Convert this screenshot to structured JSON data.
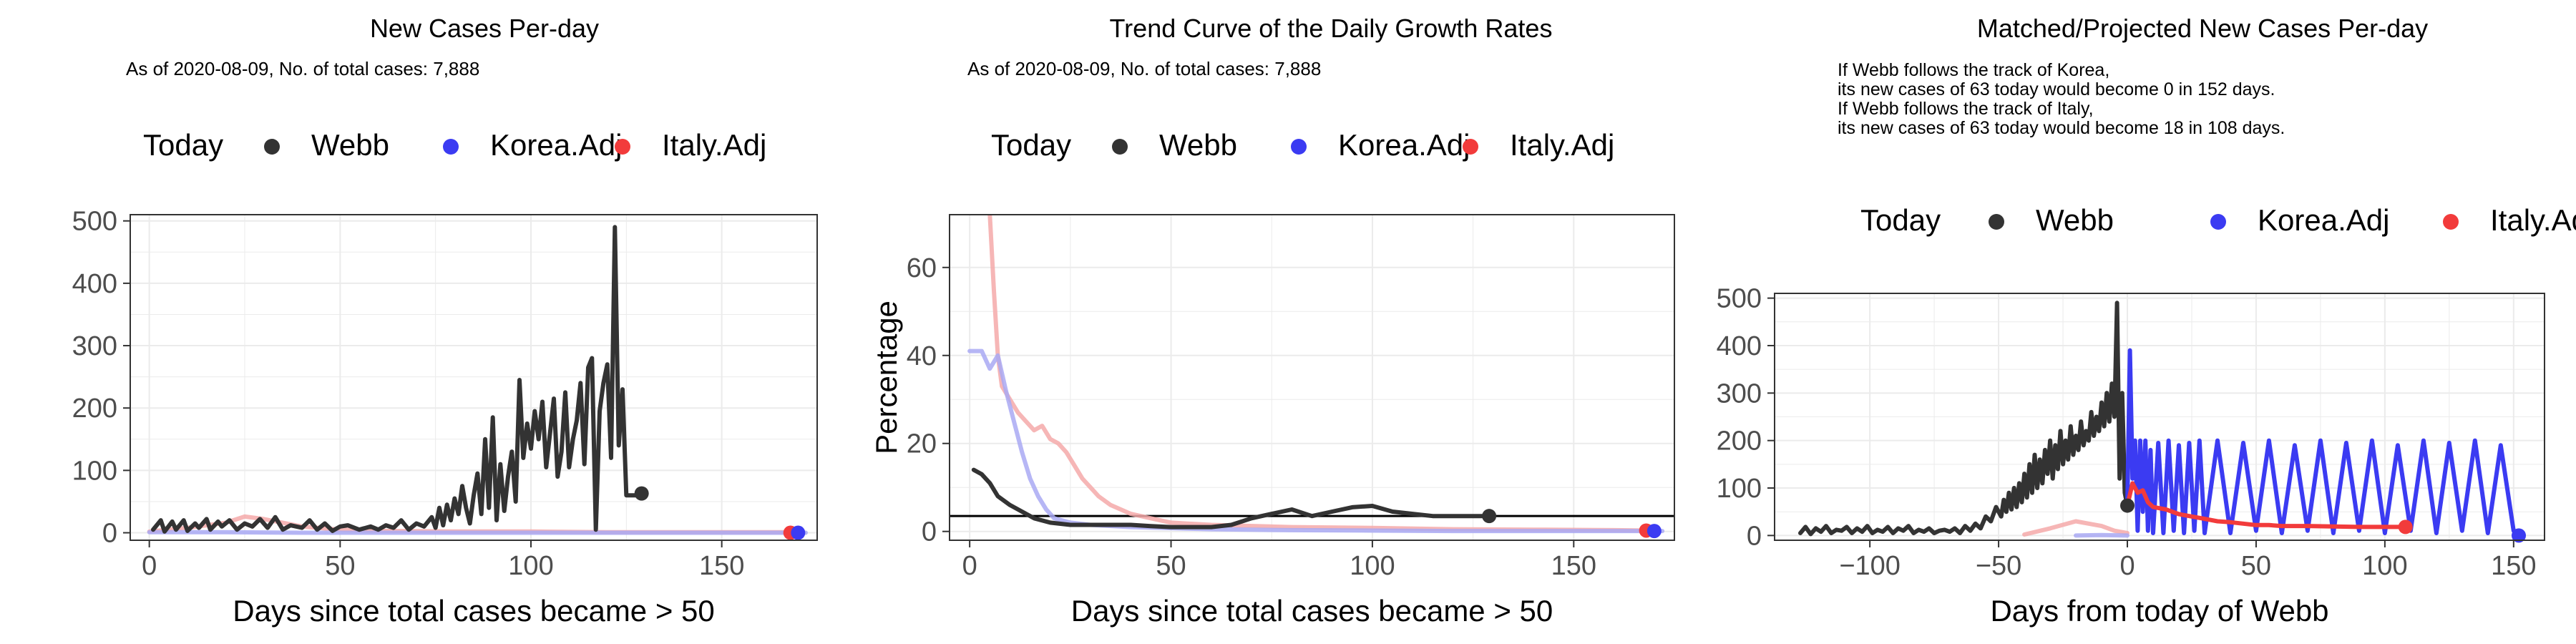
{
  "colors": {
    "webb": "#333333",
    "korea": "#3b3bf2",
    "italy": "#f23b3b",
    "korea_light": "#a9a9f3",
    "italy_light": "#f5a9a9",
    "grid": "#ebebeb"
  },
  "legend": {
    "today": "Today",
    "webb": "Webb",
    "korea": "Korea.Adj",
    "italy": "Italy.Adj"
  },
  "chart_data": [
    {
      "type": "line",
      "title": "New Cases Per-day",
      "subtitle": "As of 2020-08-09, No. of total cases: 7,888",
      "xlabel": "Days since total cases became > 50",
      "ylabel": "",
      "xlim": [
        -5,
        175
      ],
      "ylim": [
        -12,
        510
      ],
      "xticks": [
        0,
        50,
        100,
        150
      ],
      "yticks": [
        0,
        100,
        200,
        300,
        400,
        500
      ],
      "grid": true,
      "legend_position": "top",
      "series": [
        {
          "name": "Italy.Adj",
          "style": "faint",
          "x": [
            0,
            10,
            20,
            25,
            30,
            35,
            40,
            50,
            60,
            80,
            100,
            120,
            140,
            160,
            170
          ],
          "y": [
            2,
            8,
            16,
            26,
            22,
            16,
            10,
            5,
            3,
            2,
            2,
            1,
            1,
            1,
            1
          ]
        },
        {
          "name": "Korea.Adj",
          "style": "faint",
          "x": [
            0,
            5,
            10,
            20,
            40,
            60,
            80,
            100,
            120,
            140,
            160,
            172
          ],
          "y": [
            1,
            1,
            1,
            1,
            0,
            0,
            0,
            0,
            0,
            0,
            0,
            0
          ]
        },
        {
          "name": "Webb",
          "style": "main",
          "x": [
            1,
            3,
            4,
            6,
            7,
            9,
            10,
            12,
            13,
            15,
            16,
            18,
            19,
            21,
            23,
            25,
            27,
            29,
            31,
            33,
            35,
            37,
            40,
            42,
            44,
            46,
            48,
            50,
            52,
            55,
            58,
            60,
            62,
            64,
            66,
            68,
            70,
            72,
            74,
            75,
            76,
            77,
            78,
            79,
            80,
            81,
            82,
            83,
            84,
            85,
            86,
            87,
            88,
            89,
            90,
            91,
            92,
            93,
            94,
            95,
            96,
            97,
            98,
            99,
            100,
            101,
            102,
            103,
            104,
            105,
            106,
            107,
            108,
            109,
            110,
            111,
            112,
            113,
            114,
            115,
            116,
            117,
            118,
            119,
            120,
            121,
            122,
            123,
            124,
            125,
            126,
            127,
            128,
            129
          ],
          "y": [
            5,
            20,
            2,
            18,
            5,
            20,
            3,
            15,
            8,
            22,
            5,
            18,
            10,
            20,
            5,
            15,
            10,
            22,
            8,
            25,
            5,
            12,
            8,
            20,
            5,
            15,
            3,
            10,
            12,
            5,
            10,
            5,
            12,
            8,
            20,
            5,
            15,
            10,
            25,
            8,
            40,
            12,
            45,
            20,
            55,
            30,
            75,
            40,
            15,
            60,
            95,
            30,
            150,
            40,
            185,
            20,
            110,
            35,
            90,
            130,
            50,
            245,
            120,
            175,
            135,
            195,
            150,
            210,
            105,
            160,
            215,
            90,
            130,
            225,
            105,
            150,
            180,
            240,
            110,
            265,
            280,
            5,
            195,
            240,
            270,
            120,
            490,
            140,
            230,
            60,
            60,
            60,
            60,
            63
          ]
        }
      ],
      "today_points": [
        {
          "series": "Webb",
          "x": 129,
          "y": 63
        },
        {
          "series": "Italy.Adj",
          "x": 168,
          "y": 0
        },
        {
          "series": "Korea.Adj",
          "x": 170,
          "y": 0
        }
      ]
    },
    {
      "type": "line",
      "title": "Trend Curve of the Daily Growth Rates",
      "subtitle": "As of 2020-08-09, No. of total cases: 7,888",
      "xlabel": "Days since total cases became > 50",
      "ylabel": "Percentage",
      "xlim": [
        -5,
        175
      ],
      "ylim": [
        -2,
        72
      ],
      "xticks": [
        0,
        50,
        100,
        150
      ],
      "yticks": [
        0,
        20,
        40,
        60
      ],
      "hline": 3.5,
      "grid": true,
      "legend_position": "top",
      "series": [
        {
          "name": "Italy.Adj",
          "style": "faint",
          "x": [
            5,
            6,
            7,
            8,
            10,
            12,
            14,
            16,
            18,
            20,
            22,
            24,
            26,
            28,
            30,
            32,
            35,
            40,
            45,
            50,
            60,
            80,
            100,
            120,
            140,
            160,
            170
          ],
          "y": [
            72,
            55,
            40,
            33,
            30,
            27,
            25,
            23,
            24,
            21,
            20,
            18,
            15,
            12,
            10,
            8,
            6,
            4,
            3,
            2,
            1.5,
            1,
            0.8,
            0.5,
            0.4,
            0.3,
            0.2
          ]
        },
        {
          "name": "Korea.Adj",
          "style": "faint",
          "x": [
            0,
            3,
            5,
            7,
            9,
            11,
            13,
            15,
            17,
            19,
            21,
            25,
            30,
            40,
            60,
            80,
            100,
            120,
            140,
            160,
            172
          ],
          "y": [
            41,
            41,
            37,
            40,
            32,
            25,
            18,
            12,
            8,
            5,
            3,
            2,
            1.5,
            1,
            0.5,
            0.3,
            0.2,
            0.1,
            0.1,
            0.1,
            0.1
          ]
        },
        {
          "name": "Webb",
          "style": "main",
          "x": [
            1,
            3,
            5,
            7,
            10,
            13,
            16,
            20,
            25,
            30,
            35,
            40,
            45,
            50,
            55,
            60,
            65,
            70,
            75,
            80,
            85,
            90,
            95,
            100,
            105,
            110,
            115,
            120,
            125,
            129
          ],
          "y": [
            14,
            13,
            11,
            8,
            6,
            4.5,
            3,
            2,
            1.5,
            1.5,
            1.5,
            1.5,
            1.2,
            1.0,
            1.0,
            1.0,
            1.5,
            3,
            4,
            5,
            3.5,
            4.5,
            5.5,
            5.8,
            4.5,
            4,
            3.5,
            3.5,
            3.5,
            3.5
          ]
        }
      ],
      "today_points": [
        {
          "series": "Webb",
          "x": 129,
          "y": 3.5
        },
        {
          "series": "Italy.Adj",
          "x": 168,
          "y": 0.2
        },
        {
          "series": "Korea.Adj",
          "x": 170,
          "y": 0.1
        }
      ]
    },
    {
      "type": "line",
      "title": "Matched/Projected New Cases Per-day",
      "annotations": [
        "If Webb follows the track of Korea,",
        "its new cases of 63 today would become 0 in 152 days.",
        "If Webb follows the track of Italy,",
        "its new cases of 63 today would become 18 in 108 days."
      ],
      "xlabel": "Days from today of Webb",
      "ylabel": "",
      "xlim": [
        -137,
        162
      ],
      "ylim": [
        -10,
        510
      ],
      "xticks": [
        -100,
        -50,
        0,
        50,
        100,
        150
      ],
      "yticks": [
        0,
        100,
        200,
        300,
        400,
        500
      ],
      "grid": true,
      "legend_position": "top",
      "series": [
        {
          "name": "Italy.Adj",
          "style": "faint",
          "x": [
            -40,
            -30,
            -20,
            -15,
            -10,
            -5,
            0
          ],
          "y": [
            2,
            15,
            30,
            25,
            20,
            10,
            5
          ]
        },
        {
          "name": "Korea.Adj",
          "style": "faint",
          "x": [
            -20,
            -10,
            0
          ],
          "y": [
            0,
            1,
            0
          ]
        },
        {
          "name": "Webb",
          "style": "main",
          "x": [
            -127,
            -125,
            -123,
            -121,
            -119,
            -117,
            -115,
            -113,
            -111,
            -109,
            -107,
            -105,
            -103,
            -101,
            -99,
            -97,
            -95,
            -93,
            -91,
            -89,
            -87,
            -85,
            -83,
            -81,
            -79,
            -77,
            -75,
            -73,
            -71,
            -69,
            -67,
            -65,
            -63,
            -61,
            -59,
            -57,
            -55,
            -53,
            -51,
            -49,
            -48,
            -47,
            -46,
            -45,
            -44,
            -43,
            -42,
            -41,
            -40,
            -39,
            -38,
            -37,
            -36,
            -35,
            -34,
            -33,
            -32,
            -31,
            -30,
            -29,
            -28,
            -27,
            -26,
            -25,
            -24,
            -23,
            -22,
            -21,
            -20,
            -19,
            -18,
            -17,
            -16,
            -15,
            -14,
            -13,
            -12,
            -11,
            -10,
            -9,
            -8,
            -7,
            -6,
            -5,
            -4,
            -3,
            -2,
            -1,
            0
          ],
          "y": [
            5,
            18,
            3,
            15,
            8,
            20,
            5,
            12,
            10,
            18,
            5,
            15,
            8,
            20,
            5,
            12,
            8,
            18,
            5,
            15,
            10,
            20,
            5,
            12,
            8,
            15,
            5,
            10,
            12,
            8,
            15,
            5,
            20,
            10,
            25,
            15,
            40,
            30,
            60,
            40,
            75,
            50,
            90,
            55,
            100,
            60,
            110,
            70,
            130,
            80,
            150,
            90,
            170,
            100,
            160,
            110,
            180,
            130,
            200,
            120,
            190,
            140,
            220,
            150,
            200,
            160,
            230,
            170,
            210,
            180,
            240,
            190,
            220,
            200,
            260,
            210,
            250,
            220,
            280,
            230,
            300,
            240,
            320,
            250,
            490,
            120,
            300,
            90,
            63
          ]
        },
        {
          "name": "Korea.Adj",
          "style": "projection",
          "x": [
            0,
            1,
            2,
            3,
            4,
            5,
            6,
            7,
            8,
            9,
            10,
            12,
            14,
            16,
            18,
            20,
            22,
            24,
            26,
            28,
            30,
            35,
            40,
            45,
            50,
            55,
            60,
            65,
            70,
            75,
            80,
            85,
            90,
            95,
            100,
            105,
            110,
            115,
            120,
            125,
            130,
            135,
            140,
            145,
            150,
            152
          ],
          "y": [
            63,
            390,
            120,
            200,
            10,
            200,
            50,
            200,
            10,
            180,
            5,
            195,
            5,
            200,
            10,
            190,
            5,
            195,
            10,
            200,
            5,
            200,
            5,
            195,
            10,
            200,
            5,
            190,
            10,
            200,
            5,
            195,
            10,
            200,
            5,
            190,
            10,
            200,
            5,
            195,
            10,
            200,
            5,
            190,
            10,
            0
          ]
        },
        {
          "name": "Italy.Adj",
          "style": "projection",
          "x": [
            0,
            2,
            4,
            6,
            8,
            10,
            15,
            20,
            25,
            30,
            35,
            40,
            45,
            50,
            55,
            60,
            70,
            80,
            90,
            100,
            108
          ],
          "y": [
            63,
            110,
            90,
            95,
            70,
            60,
            55,
            45,
            40,
            35,
            30,
            28,
            25,
            22,
            22,
            20,
            20,
            19,
            18,
            18,
            18
          ]
        }
      ],
      "today_points": [
        {
          "series": "Webb",
          "x": 0,
          "y": 63
        },
        {
          "series": "Italy.Adj",
          "x": 108,
          "y": 18
        },
        {
          "series": "Korea.Adj",
          "x": 152,
          "y": 0
        }
      ]
    }
  ]
}
